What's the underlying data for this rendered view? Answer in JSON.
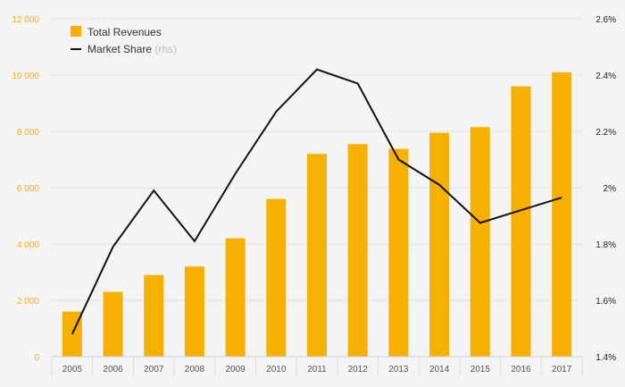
{
  "chart_data": {
    "type": "bar",
    "categories": [
      "2005",
      "2006",
      "2007",
      "2008",
      "2009",
      "2010",
      "2011",
      "2012",
      "2013",
      "2014",
      "2015",
      "2016",
      "2017"
    ],
    "series": [
      {
        "name": "Total Revenues",
        "type": "bar",
        "axis": "left",
        "color": "#f5b000",
        "values": [
          1600,
          2300,
          2900,
          3200,
          4200,
          5600,
          7200,
          7550,
          7380,
          7950,
          8150,
          9600,
          10100
        ]
      },
      {
        "name": "Market Share",
        "name_suffix": "(rhs)",
        "type": "line",
        "axis": "right",
        "color": "#111111",
        "values": [
          1.48,
          1.79,
          1.99,
          1.81,
          2.05,
          2.27,
          2.42,
          2.37,
          2.1,
          2.01,
          1.875,
          1.92,
          1.965
        ]
      }
    ],
    "y_left": {
      "ylim": [
        0,
        12000
      ],
      "ticks": [
        0,
        2000,
        4000,
        6000,
        8000,
        10000,
        12000
      ],
      "tick_labels": [
        "0",
        "2 000",
        "4 000",
        "6 000",
        "8 000",
        "10 000",
        "12 000"
      ],
      "color": "#f5b000"
    },
    "y_right": {
      "ylim": [
        1.4,
        2.6
      ],
      "ticks": [
        1.4,
        1.6,
        1.8,
        2.0,
        2.2,
        2.4,
        2.6
      ],
      "tick_labels": [
        "1.4%",
        "1.6%",
        "1.8%",
        "2%",
        "2.2%",
        "2.4%",
        "2.6%"
      ]
    },
    "grid": true,
    "legend_position": "top-left"
  }
}
